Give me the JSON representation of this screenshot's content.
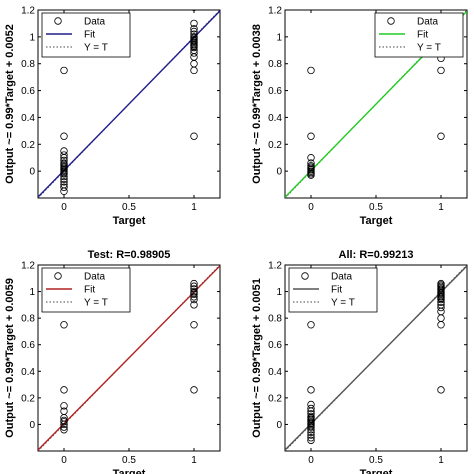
{
  "chart_data": [
    {
      "type": "scatter",
      "title": "",
      "xlabel": "Target",
      "ylabel": "Output ~= 0.99*Target + 0.0052",
      "xlim": [
        -0.2,
        1.2
      ],
      "ylim": [
        -0.2,
        1.2
      ],
      "xticks": [
        "0",
        "0.5",
        "1"
      ],
      "yticks": [
        "0",
        "0.2",
        "0.4",
        "0.6",
        "0.8",
        "1",
        "1.2"
      ],
      "legend": [
        "Data",
        "Fit",
        "Y = T"
      ],
      "legend_position": "top-left",
      "fit_color": "#1f1f8c",
      "fit": {
        "slope": 0.99,
        "intercept": 0.0052
      },
      "series": [
        {
          "name": "Data",
          "points": [
            [
              0,
              0.26
            ],
            [
              0,
              0.15
            ],
            [
              0,
              0.12
            ],
            [
              0,
              0.1
            ],
            [
              0,
              0.08
            ],
            [
              0,
              0.06
            ],
            [
              0,
              0.05
            ],
            [
              0,
              0.04
            ],
            [
              0,
              0.03
            ],
            [
              0,
              0.02
            ],
            [
              0,
              0.01
            ],
            [
              0,
              0.0
            ],
            [
              0,
              -0.01
            ],
            [
              0,
              -0.02
            ],
            [
              0,
              -0.04
            ],
            [
              0,
              -0.06
            ],
            [
              0,
              -0.08
            ],
            [
              0,
              -0.1
            ],
            [
              0,
              -0.12
            ],
            [
              0,
              -0.15
            ],
            [
              0,
              0.75
            ],
            [
              1,
              1.22
            ],
            [
              1,
              1.1
            ],
            [
              1,
              1.06
            ],
            [
              1,
              1.04
            ],
            [
              1,
              1.02
            ],
            [
              1,
              1.0
            ],
            [
              1,
              0.99
            ],
            [
              1,
              0.98
            ],
            [
              1,
              0.97
            ],
            [
              1,
              0.96
            ],
            [
              1,
              0.95
            ],
            [
              1,
              0.94
            ],
            [
              1,
              0.93
            ],
            [
              1,
              0.92
            ],
            [
              1,
              0.9
            ],
            [
              1,
              0.88
            ],
            [
              1,
              0.85
            ],
            [
              1,
              0.8
            ],
            [
              1,
              0.75
            ],
            [
              1,
              0.26
            ]
          ]
        }
      ]
    },
    {
      "type": "scatter",
      "title": "",
      "xlabel": "Target",
      "ylabel": "Output ~= 0.99*Target + 0.0038",
      "xlim": [
        -0.2,
        1.2
      ],
      "ylim": [
        -0.2,
        1.2
      ],
      "xticks": [
        "0",
        "0.5",
        "1"
      ],
      "yticks": [
        "0",
        "0.2",
        "0.4",
        "0.6",
        "0.8",
        "1",
        "1.2"
      ],
      "legend": [
        "Data",
        "Fit",
        "Y = T"
      ],
      "legend_position": "top-right",
      "fit_color": "#22cc22",
      "fit": {
        "slope": 0.99,
        "intercept": 0.0038
      },
      "series": [
        {
          "name": "Data",
          "points": [
            [
              0,
              0.75
            ],
            [
              0,
              0.26
            ],
            [
              0,
              0.1
            ],
            [
              0,
              0.06
            ],
            [
              0,
              0.04
            ],
            [
              0,
              0.03
            ],
            [
              0,
              0.02
            ],
            [
              0,
              0.01
            ],
            [
              0,
              0.0
            ],
            [
              0,
              -0.01
            ],
            [
              0,
              -0.02
            ],
            [
              0,
              -0.03
            ],
            [
              1,
              1.04
            ],
            [
              1,
              1.02
            ],
            [
              1,
              1.0
            ],
            [
              1,
              0.99
            ],
            [
              1,
              0.98
            ],
            [
              1,
              0.96
            ],
            [
              1,
              0.94
            ],
            [
              1,
              0.9
            ],
            [
              1,
              0.84
            ],
            [
              1,
              0.75
            ],
            [
              1,
              0.26
            ]
          ]
        }
      ]
    },
    {
      "type": "scatter",
      "title": "Test: R=0.98905",
      "xlabel": "Target",
      "ylabel": "Output ~= 0.99*Target + 0.0059",
      "xlim": [
        -0.2,
        1.2
      ],
      "ylim": [
        -0.2,
        1.2
      ],
      "xticks": [
        "0",
        "0.5",
        "1"
      ],
      "yticks": [
        "0",
        "0.2",
        "0.4",
        "0.6",
        "0.8",
        "1",
        "1.2"
      ],
      "legend": [
        "Data",
        "Fit",
        "Y = T"
      ],
      "legend_position": "top-left",
      "fit_color": "#b22222",
      "fit": {
        "slope": 0.99,
        "intercept": 0.0059
      },
      "series": [
        {
          "name": "Data",
          "points": [
            [
              0,
              0.75
            ],
            [
              0,
              0.26
            ],
            [
              0,
              0.14
            ],
            [
              0,
              0.1
            ],
            [
              0,
              0.05
            ],
            [
              0,
              0.03
            ],
            [
              0,
              0.02
            ],
            [
              0,
              0.0
            ],
            [
              0,
              -0.02
            ],
            [
              0,
              -0.04
            ],
            [
              1,
              1.06
            ],
            [
              1,
              1.04
            ],
            [
              1,
              1.02
            ],
            [
              1,
              1.0
            ],
            [
              1,
              0.99
            ],
            [
              1,
              0.98
            ],
            [
              1,
              0.96
            ],
            [
              1,
              0.94
            ],
            [
              1,
              0.9
            ],
            [
              1,
              0.75
            ],
            [
              1,
              0.26
            ]
          ]
        }
      ]
    },
    {
      "type": "scatter",
      "title": "All: R=0.99213",
      "xlabel": "Target",
      "ylabel": "Output ~= 0.99*Target + 0.0051",
      "xlim": [
        -0.2,
        1.2
      ],
      "ylim": [
        -0.2,
        1.2
      ],
      "xticks": [
        "0",
        "0.5",
        "1"
      ],
      "yticks": [
        "0",
        "0.2",
        "0.4",
        "0.6",
        "0.8",
        "1",
        "1.2"
      ],
      "legend": [
        "Data",
        "Fit",
        "Y = T"
      ],
      "legend_position": "top-left",
      "fit_color": "#555555",
      "fit": {
        "slope": 0.99,
        "intercept": 0.0051
      },
      "series": [
        {
          "name": "Data",
          "points": [
            [
              0,
              0.75
            ],
            [
              0,
              0.26
            ],
            [
              0,
              0.15
            ],
            [
              0,
              0.12
            ],
            [
              0,
              0.1
            ],
            [
              0,
              0.08
            ],
            [
              0,
              0.06
            ],
            [
              0,
              0.05
            ],
            [
              0,
              0.04
            ],
            [
              0,
              0.03
            ],
            [
              0,
              0.02
            ],
            [
              0,
              0.01
            ],
            [
              0,
              0.0
            ],
            [
              0,
              -0.01
            ],
            [
              0,
              -0.02
            ],
            [
              0,
              -0.04
            ],
            [
              0,
              -0.06
            ],
            [
              0,
              -0.08
            ],
            [
              0,
              -0.1
            ],
            [
              0,
              -0.12
            ],
            [
              1,
              1.06
            ],
            [
              1,
              1.05
            ],
            [
              1,
              1.04
            ],
            [
              1,
              1.03
            ],
            [
              1,
              1.02
            ],
            [
              1,
              1.01
            ],
            [
              1,
              1.0
            ],
            [
              1,
              0.99
            ],
            [
              1,
              0.98
            ],
            [
              1,
              0.97
            ],
            [
              1,
              0.96
            ],
            [
              1,
              0.95
            ],
            [
              1,
              0.94
            ],
            [
              1,
              0.92
            ],
            [
              1,
              0.9
            ],
            [
              1,
              0.88
            ],
            [
              1,
              0.85
            ],
            [
              1,
              0.8
            ],
            [
              1,
              0.75
            ],
            [
              1,
              0.26
            ]
          ]
        }
      ]
    }
  ]
}
